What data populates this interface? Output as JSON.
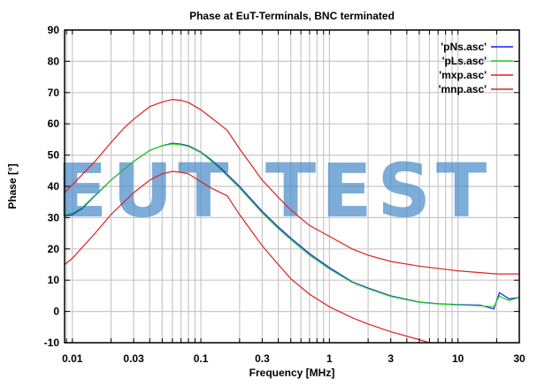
{
  "chart_data": {
    "type": "line",
    "title": "Phase at EuT-Terminals, BNC terminated",
    "xlabel": "Frequency [MHz]",
    "ylabel": "Phase [°]",
    "xscale": "log",
    "xlim": [
      0.0087,
      30
    ],
    "ylim": [
      -10,
      90
    ],
    "xticks": [
      0.01,
      0.03,
      0.1,
      0.3,
      1,
      3,
      10,
      30
    ],
    "xtick_labels": [
      "0.01",
      "0.03",
      "0.1",
      "0.3",
      "1",
      "3",
      "10",
      "30"
    ],
    "yticks": [
      -10,
      0,
      10,
      20,
      30,
      40,
      50,
      60,
      70,
      80,
      90
    ],
    "ytick_labels": [
      "-10",
      "0",
      "10",
      "20",
      "30",
      "40",
      "50",
      "60",
      "70",
      "80",
      "90"
    ],
    "grid": true,
    "legend_position": "top-right",
    "watermark": "EUT TEST",
    "series": [
      {
        "name": "'pNs.asc'",
        "color": "#1a1aff",
        "x": [
          0.0087,
          0.01,
          0.012,
          0.015,
          0.02,
          0.03,
          0.04,
          0.05,
          0.06,
          0.07,
          0.08,
          0.1,
          0.12,
          0.15,
          0.2,
          0.3,
          0.4,
          0.5,
          0.7,
          1,
          1.5,
          2,
          3,
          5,
          7,
          10,
          15,
          19,
          21,
          22,
          25,
          30
        ],
        "y": [
          30.5,
          31,
          33,
          37,
          42,
          48,
          51.5,
          53,
          53.8,
          53.5,
          53,
          51,
          48.5,
          45,
          40,
          32,
          27,
          23.5,
          18.5,
          14,
          9.5,
          7.5,
          5,
          3,
          2.5,
          2.2,
          2,
          0.8,
          6,
          5.5,
          4,
          4.5
        ]
      },
      {
        "name": "'pLs.asc'",
        "color": "#22cc22",
        "x": [
          0.0087,
          0.01,
          0.012,
          0.015,
          0.02,
          0.03,
          0.04,
          0.05,
          0.06,
          0.07,
          0.08,
          0.1,
          0.12,
          0.15,
          0.2,
          0.3,
          0.4,
          0.5,
          0.7,
          1,
          1.5,
          2,
          3,
          5,
          7,
          10,
          15,
          19,
          21,
          22,
          25,
          30
        ],
        "y": [
          31,
          31.5,
          33.3,
          37.2,
          42,
          48,
          51.5,
          53,
          53.6,
          53.3,
          52.8,
          50.8,
          48.2,
          44.5,
          39.5,
          31.5,
          26.5,
          23,
          18,
          13.6,
          9.3,
          7.3,
          4.8,
          2.9,
          2.4,
          2.1,
          1.8,
          1.5,
          5,
          4.5,
          3.5,
          4.5
        ]
      },
      {
        "name": "'mxp.asc'",
        "color": "#e02020",
        "x": [
          0.0087,
          0.01,
          0.015,
          0.02,
          0.025,
          0.03,
          0.04,
          0.05,
          0.06,
          0.07,
          0.08,
          0.1,
          0.12,
          0.16,
          0.2,
          0.3,
          0.4,
          0.5,
          0.7,
          1,
          1.5,
          2,
          3,
          5,
          10,
          20,
          30
        ],
        "y": [
          38,
          40.5,
          48,
          54,
          58.5,
          61.5,
          65.5,
          67,
          67.8,
          67.5,
          66.8,
          64.5,
          62,
          58,
          52,
          42,
          36.5,
          32.5,
          27.5,
          24,
          20,
          18,
          16,
          14.5,
          13,
          12,
          12
        ]
      },
      {
        "name": "'mnp.asc'",
        "color": "#e02020",
        "x": [
          0.0087,
          0.01,
          0.015,
          0.02,
          0.03,
          0.04,
          0.05,
          0.06,
          0.07,
          0.08,
          0.1,
          0.12,
          0.16,
          0.2,
          0.3,
          0.4,
          0.5,
          0.7,
          1,
          1.5,
          2,
          3,
          5,
          6
        ],
        "y": [
          15,
          17,
          25,
          31,
          38,
          42,
          44,
          44.8,
          44.5,
          44,
          41.5,
          39.5,
          37,
          31,
          21,
          15,
          10.5,
          5.5,
          1.5,
          -2,
          -4,
          -6.5,
          -9,
          -10
        ]
      }
    ]
  }
}
